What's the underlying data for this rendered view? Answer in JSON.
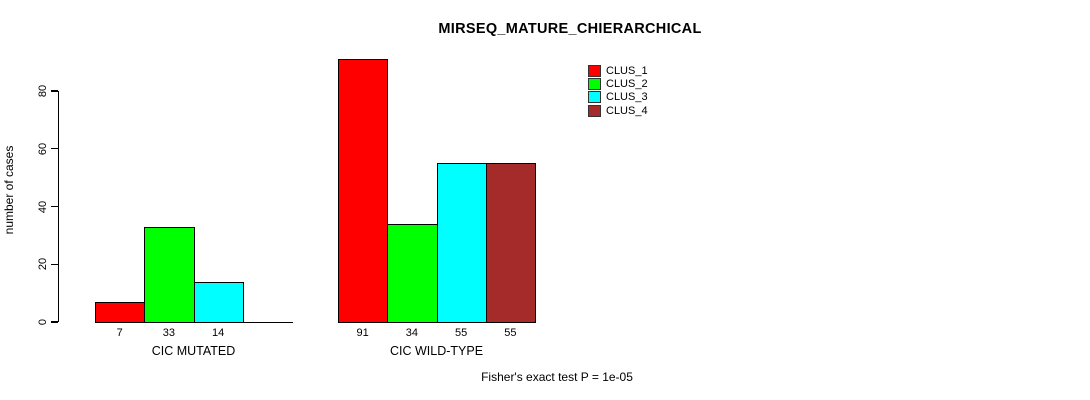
{
  "chart_data": {
    "type": "bar",
    "title": "MIRSEQ_MATURE_CHIERARCHICAL",
    "ylabel": "number of cases",
    "xlabel": "",
    "ylim": [
      0,
      80
    ],
    "yticks": [
      "0",
      "20",
      "40",
      "60",
      "80"
    ],
    "ytick_values": [
      0,
      20,
      40,
      60,
      80
    ],
    "grid": false,
    "legend_position": "top-right",
    "series_colors": [
      "#FF0000",
      "#00FF00",
      "#00FFFF",
      "#A52A2A"
    ],
    "groups": [
      {
        "label": "CIC MUTATED",
        "values": [
          7,
          33,
          14,
          0
        ],
        "bar_labels": [
          "7",
          "33",
          "14",
          ""
        ]
      },
      {
        "label": "CIC WILD-TYPE",
        "values": [
          91,
          34,
          55,
          55
        ],
        "bar_labels": [
          "91",
          "34",
          "55",
          "55"
        ]
      }
    ],
    "legend": [
      {
        "label": "CLUS_1",
        "color": "#FF0000"
      },
      {
        "label": "CLUS_2",
        "color": "#00FF00"
      },
      {
        "label": "CLUS_3",
        "color": "#00FFFF"
      },
      {
        "label": "CLUS_4",
        "color": "#A52A2A"
      }
    ],
    "footnote": "Fisher's exact test P = 1e-05"
  }
}
